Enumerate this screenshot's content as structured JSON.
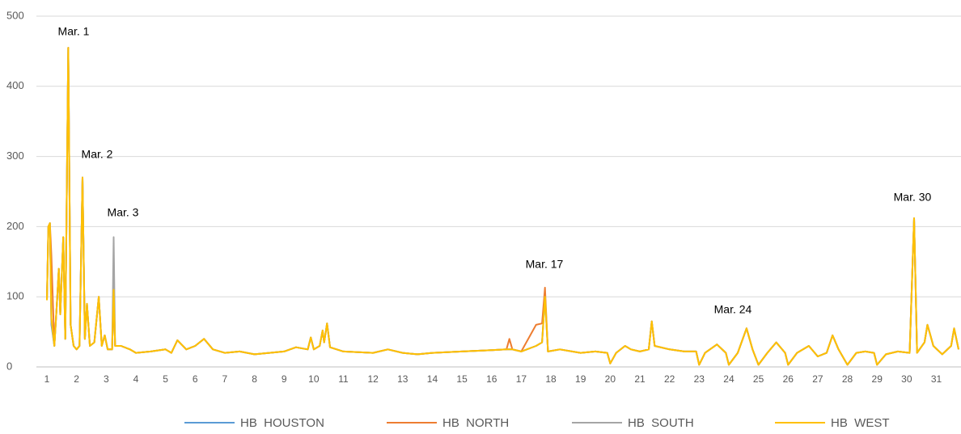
{
  "chart_data": {
    "type": "line",
    "annotations": [
      "Mar. 1",
      "Mar. 2",
      "Mar. 3",
      "Mar. 17",
      "Mar. 24",
      "Mar. 30"
    ],
    "x": [
      1,
      1.05,
      1.1,
      1.15,
      1.25,
      1.35,
      1.4,
      1.45,
      1.55,
      1.62,
      1.72,
      1.8,
      1.9,
      2,
      2.1,
      2.2,
      2.28,
      2.35,
      2.45,
      2.6,
      2.75,
      2.85,
      2.95,
      3.05,
      3.2,
      3.25,
      3.3,
      3.5,
      3.8,
      4,
      4.5,
      5,
      5.2,
      5.4,
      5.7,
      6,
      6.3,
      6.6,
      7,
      7.5,
      8,
      8.5,
      9,
      9.4,
      9.8,
      9.9,
      10,
      10.2,
      10.3,
      10.35,
      10.45,
      10.55,
      11,
      12,
      12.5,
      13,
      13.5,
      14,
      15,
      16,
      16.5,
      16.6,
      16.7,
      17,
      17.5,
      17.7,
      17.8,
      17.9,
      18.3,
      19,
      19.5,
      19.9,
      20,
      20.2,
      20.5,
      20.7,
      21,
      21.3,
      21.4,
      21.5,
      22,
      22.5,
      22.9,
      23,
      23.2,
      23.6,
      23.9,
      24,
      24.3,
      24.6,
      24.8,
      25,
      25.3,
      25.6,
      25.9,
      26,
      26.3,
      26.7,
      27,
      27.3,
      27.5,
      27.7,
      28,
      28.3,
      28.6,
      28.9,
      29,
      29.3,
      29.7,
      30.1,
      30.25,
      30.35,
      30.6,
      30.7,
      30.8,
      30.9,
      31.2,
      31.5,
      31.6,
      31.75
    ],
    "series": [
      {
        "name": "HB  HOUSTON",
        "color": "#5b9bd5",
        "values": [
          95,
          200,
          205,
          60,
          30,
          100,
          140,
          75,
          185,
          40,
          455,
          60,
          30,
          25,
          30,
          270,
          40,
          90,
          30,
          35,
          100,
          30,
          45,
          25,
          25,
          110,
          30,
          30,
          25,
          20,
          22,
          25,
          20,
          38,
          25,
          30,
          40,
          25,
          20,
          22,
          18,
          20,
          22,
          28,
          25,
          42,
          25,
          30,
          52,
          35,
          62,
          28,
          22,
          20,
          25,
          20,
          18,
          20,
          22,
          24,
          25,
          25,
          25,
          22,
          30,
          35,
          100,
          22,
          25,
          20,
          22,
          20,
          5,
          20,
          30,
          25,
          22,
          25,
          65,
          30,
          25,
          22,
          22,
          3,
          20,
          32,
          20,
          3,
          20,
          55,
          25,
          3,
          20,
          35,
          20,
          3,
          20,
          30,
          15,
          20,
          45,
          25,
          3,
          20,
          22,
          20,
          3,
          18,
          22,
          20,
          212,
          20,
          35,
          60,
          45,
          30,
          18,
          30,
          55,
          25
        ]
      },
      {
        "name": "HB  NORTH",
        "color": "#ed7d31",
        "values": [
          95,
          200,
          205,
          160,
          30,
          100,
          140,
          75,
          185,
          40,
          455,
          60,
          30,
          25,
          30,
          270,
          40,
          90,
          30,
          35,
          100,
          30,
          45,
          25,
          25,
          110,
          30,
          30,
          25,
          20,
          22,
          25,
          20,
          38,
          25,
          30,
          40,
          25,
          20,
          22,
          18,
          20,
          22,
          28,
          25,
          42,
          25,
          30,
          52,
          35,
          62,
          28,
          22,
          20,
          25,
          20,
          18,
          20,
          22,
          24,
          25,
          40,
          25,
          22,
          60,
          62,
          113,
          22,
          25,
          20,
          22,
          20,
          5,
          20,
          30,
          25,
          22,
          25,
          65,
          30,
          25,
          22,
          22,
          3,
          20,
          32,
          20,
          3,
          20,
          55,
          25,
          3,
          20,
          35,
          20,
          3,
          20,
          30,
          15,
          20,
          45,
          25,
          3,
          20,
          22,
          20,
          3,
          18,
          22,
          20,
          212,
          20,
          35,
          60,
          45,
          30,
          18,
          30,
          55,
          25
        ]
      },
      {
        "name": "HB  SOUTH",
        "color": "#a5a5a5",
        "values": [
          95,
          200,
          205,
          65,
          30,
          100,
          140,
          75,
          185,
          40,
          455,
          60,
          30,
          25,
          30,
          270,
          40,
          90,
          30,
          35,
          100,
          30,
          45,
          25,
          25,
          185,
          30,
          30,
          25,
          20,
          22,
          25,
          20,
          38,
          25,
          30,
          40,
          25,
          20,
          22,
          18,
          20,
          22,
          28,
          25,
          42,
          25,
          30,
          52,
          35,
          62,
          28,
          22,
          20,
          25,
          20,
          18,
          20,
          22,
          24,
          25,
          25,
          25,
          22,
          30,
          35,
          100,
          22,
          25,
          20,
          22,
          20,
          5,
          20,
          30,
          25,
          22,
          25,
          65,
          30,
          25,
          22,
          22,
          3,
          20,
          32,
          20,
          3,
          20,
          55,
          25,
          3,
          20,
          35,
          20,
          3,
          20,
          30,
          15,
          20,
          45,
          25,
          3,
          20,
          22,
          20,
          3,
          18,
          22,
          20,
          212,
          20,
          35,
          60,
          45,
          30,
          18,
          30,
          55,
          25
        ]
      },
      {
        "name": "HB  WEST",
        "color": "#ffc000",
        "values": [
          95,
          200,
          205,
          70,
          30,
          100,
          140,
          75,
          185,
          40,
          455,
          60,
          30,
          25,
          30,
          270,
          40,
          90,
          30,
          35,
          100,
          30,
          45,
          25,
          25,
          110,
          30,
          30,
          25,
          20,
          22,
          25,
          20,
          38,
          25,
          30,
          40,
          25,
          20,
          22,
          18,
          20,
          22,
          28,
          25,
          42,
          25,
          30,
          52,
          35,
          62,
          28,
          22,
          20,
          25,
          20,
          18,
          20,
          22,
          24,
          25,
          25,
          25,
          22,
          30,
          35,
          100,
          22,
          25,
          20,
          22,
          20,
          5,
          20,
          30,
          25,
          22,
          25,
          65,
          30,
          25,
          22,
          22,
          3,
          20,
          32,
          20,
          3,
          20,
          55,
          25,
          3,
          20,
          35,
          20,
          3,
          20,
          30,
          15,
          20,
          45,
          25,
          3,
          20,
          22,
          20,
          3,
          18,
          22,
          20,
          212,
          20,
          35,
          60,
          45,
          30,
          18,
          30,
          55,
          25
        ]
      }
    ],
    "xlim": [
      1,
      31.75
    ],
    "xticks": [
      1,
      2,
      3,
      4,
      5,
      6,
      7,
      8,
      9,
      10,
      11,
      12,
      13,
      14,
      15,
      16,
      17,
      18,
      19,
      20,
      21,
      22,
      23,
      24,
      25,
      26,
      27,
      28,
      29,
      30,
      31
    ],
    "ylim": [
      0,
      500
    ],
    "yticks": [
      0,
      100,
      200,
      300,
      400,
      500
    ],
    "grid": true,
    "legend": "bottom"
  }
}
